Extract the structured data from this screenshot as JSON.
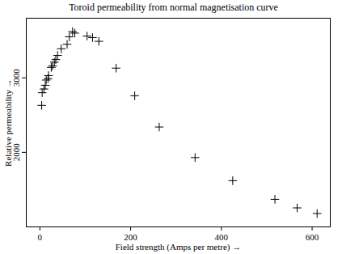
{
  "chart_data": {
    "type": "scatter",
    "title": "Toroid permeability from normal magnetisation curve",
    "x_label": "Field strength (Amps per metre)",
    "y_label": "Relative permeability",
    "x": [
      4,
      5,
      9,
      12,
      14,
      18,
      19,
      25,
      28,
      32,
      35,
      39,
      47,
      60,
      65,
      72,
      77,
      104,
      116,
      130,
      168,
      209,
      263,
      342,
      425,
      518,
      567,
      611
    ],
    "values": [
      2630,
      2800,
      2850,
      2900,
      2970,
      2990,
      3030,
      3140,
      3160,
      3210,
      3245,
      3300,
      3390,
      3450,
      3550,
      3620,
      3600,
      3560,
      3540,
      3490,
      3130,
      2760,
      2340,
      1930,
      1620,
      1370,
      1255,
      1180
    ],
    "color": "#000000",
    "marker": "plus",
    "xlim": [
      -30,
      640
    ],
    "ylim": [
      1000,
      3800
    ],
    "xticks": [
      0,
      200,
      400,
      600
    ],
    "yticks": [
      2000,
      3000
    ],
    "grid": false
  }
}
